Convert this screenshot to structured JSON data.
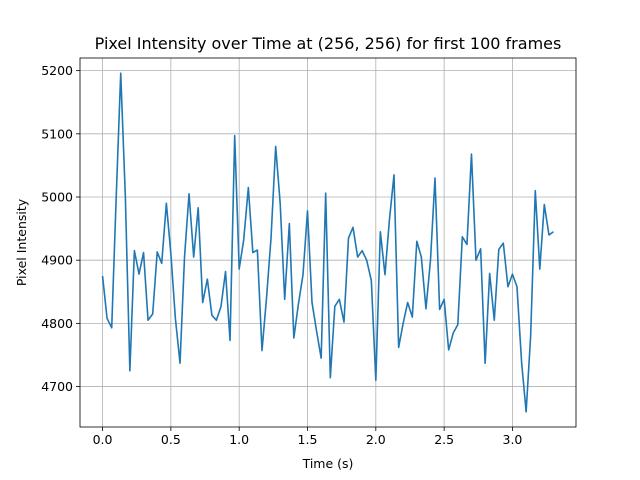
{
  "chart_data": {
    "type": "line",
    "title": "Pixel Intensity over Time at (256, 256) for first 100 frames",
    "xlabel": "Time (s)",
    "ylabel": "Pixel Intensity",
    "xlim": [
      -0.165,
      3.465
    ],
    "ylim": [
      4636,
      5220
    ],
    "xticks": [
      0.0,
      0.5,
      1.0,
      1.5,
      2.0,
      2.5,
      3.0
    ],
    "xtick_labels": [
      "0.0",
      "0.5",
      "1.0",
      "1.5",
      "2.0",
      "2.5",
      "3.0"
    ],
    "yticks": [
      4700,
      4800,
      4900,
      5000,
      5100,
      5200
    ],
    "ytick_labels": [
      "4700",
      "4800",
      "4900",
      "5000",
      "5100",
      "5200"
    ],
    "grid": true,
    "color": "#1f77b4",
    "series": [
      {
        "x": [
          0.0,
          0.033,
          0.067,
          0.1,
          0.133,
          0.167,
          0.2,
          0.233,
          0.267,
          0.3,
          0.333,
          0.367,
          0.4,
          0.433,
          0.467,
          0.5,
          0.533,
          0.567,
          0.6,
          0.633,
          0.667,
          0.7,
          0.733,
          0.767,
          0.8,
          0.833,
          0.867,
          0.9,
          0.933,
          0.967,
          1.0,
          1.033,
          1.067,
          1.1,
          1.133,
          1.167,
          1.2,
          1.233,
          1.267,
          1.3,
          1.333,
          1.367,
          1.4,
          1.433,
          1.467,
          1.5,
          1.533,
          1.567,
          1.6,
          1.633,
          1.667,
          1.7,
          1.733,
          1.767,
          1.8,
          1.833,
          1.867,
          1.9,
          1.933,
          1.967,
          2.0,
          2.033,
          2.067,
          2.1,
          2.133,
          2.167,
          2.2,
          2.233,
          2.267,
          2.3,
          2.333,
          2.367,
          2.4,
          2.433,
          2.467,
          2.5,
          2.533,
          2.567,
          2.6,
          2.633,
          2.667,
          2.7,
          2.733,
          2.767,
          2.8,
          2.833,
          2.867,
          2.9,
          2.933,
          2.967,
          3.0,
          3.033,
          3.067,
          3.1,
          3.133,
          3.167,
          3.2,
          3.233,
          3.267,
          3.3
        ],
        "values": [
          4875,
          4808,
          4793,
          5000,
          5196,
          5000,
          4725,
          4915,
          4878,
          4912,
          4805,
          4815,
          4913,
          4895,
          4990,
          4910,
          4808,
          4737,
          4905,
          5005,
          4905,
          4983,
          4833,
          4870,
          4813,
          4805,
          4827,
          4882,
          4773,
          5097,
          4886,
          4932,
          5015,
          4912,
          4916,
          4757,
          4840,
          4935,
          5080,
          4990,
          4838,
          4958,
          4777,
          4830,
          4877,
          4978,
          4833,
          4787,
          4745,
          5006,
          4714,
          4827,
          4838,
          4802,
          4935,
          4952,
          4905,
          4915,
          4900,
          4868,
          4710,
          4945,
          4877,
          4965,
          5035,
          4762,
          4800,
          4833,
          4810,
          4930,
          4905,
          4823,
          4900,
          5030,
          4822,
          4838,
          4758,
          4785,
          4798,
          4937,
          4925,
          5068,
          4900,
          4918,
          4737,
          4879,
          4805,
          4917,
          4927,
          4858,
          4878,
          4858,
          4738,
          4660,
          4780,
          5010,
          4886,
          4988,
          4940,
          4945
        ]
      }
    ]
  }
}
